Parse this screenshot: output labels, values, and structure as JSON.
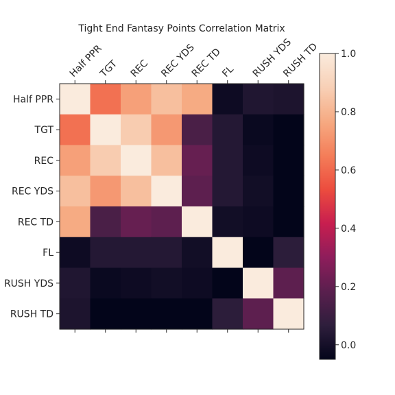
{
  "chart_data": {
    "type": "heatmap",
    "title": "Tight End Fantasy Points Correlation Matrix",
    "labels": [
      "Half PPR",
      "TGT",
      "REC",
      "REC YDS",
      "REC TD",
      "FL",
      "RUSH YDS",
      "RUSH TD"
    ],
    "matrix": [
      [
        1.0,
        0.62,
        0.74,
        0.83,
        0.77,
        -0.02,
        0.03,
        0.02
      ],
      [
        0.62,
        1.0,
        0.87,
        0.72,
        0.14,
        0.04,
        -0.03,
        -0.05
      ],
      [
        0.74,
        0.87,
        1.0,
        0.83,
        0.21,
        0.04,
        -0.02,
        -0.05
      ],
      [
        0.83,
        0.72,
        0.83,
        1.0,
        0.19,
        0.04,
        -0.01,
        -0.05
      ],
      [
        0.77,
        0.14,
        0.21,
        0.19,
        1.0,
        -0.01,
        -0.02,
        -0.05
      ],
      [
        -0.02,
        0.04,
        0.04,
        0.04,
        -0.01,
        1.0,
        -0.05,
        0.06
      ],
      [
        0.03,
        -0.03,
        -0.02,
        -0.01,
        -0.02,
        -0.05,
        1.0,
        0.19
      ],
      [
        0.02,
        -0.05,
        -0.05,
        -0.05,
        -0.05,
        0.06,
        0.19,
        1.0
      ]
    ],
    "colorbar": {
      "min": -0.05,
      "max": 1.0,
      "ticks": [
        "0.0",
        "0.2",
        "0.4",
        "0.6",
        "0.8",
        "1.0"
      ],
      "tick_values": [
        0.0,
        0.2,
        0.4,
        0.6,
        0.8,
        1.0
      ]
    },
    "colormap": "rocket",
    "colormap_stops": [
      "#03051a",
      "#2e1e3c",
      "#5a1f4e",
      "#8e1d5b",
      "#c81e4f",
      "#ec4c3e",
      "#f47e59",
      "#f6aa82",
      "#f8d0b6",
      "#faebdd"
    ]
  }
}
